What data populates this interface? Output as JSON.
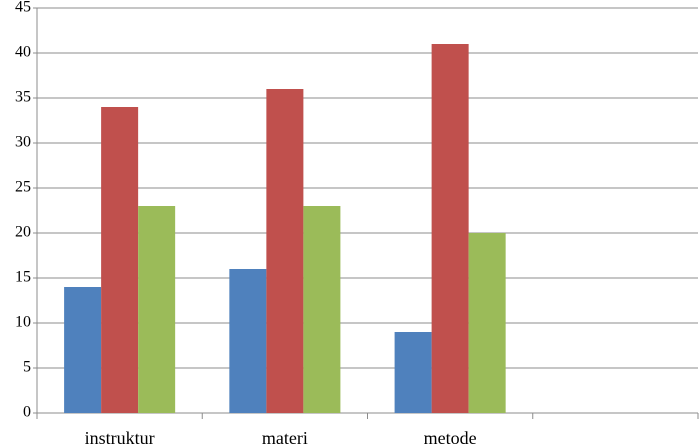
{
  "chart_data": {
    "type": "bar",
    "categories": [
      "instruktur",
      "materi",
      "metode",
      null
    ],
    "series": [
      {
        "color": "#4f81bd",
        "values": [
          14,
          16,
          9,
          null
        ]
      },
      {
        "color": "#c0504d",
        "values": [
          34,
          36,
          41,
          null
        ]
      },
      {
        "color": "#9bbb59",
        "values": [
          23,
          23,
          20,
          null
        ]
      }
    ],
    "ylim": [
      0,
      45
    ],
    "yticks": [
      0,
      5,
      10,
      15,
      20,
      25,
      30,
      35,
      40,
      45
    ],
    "grid": true
  }
}
